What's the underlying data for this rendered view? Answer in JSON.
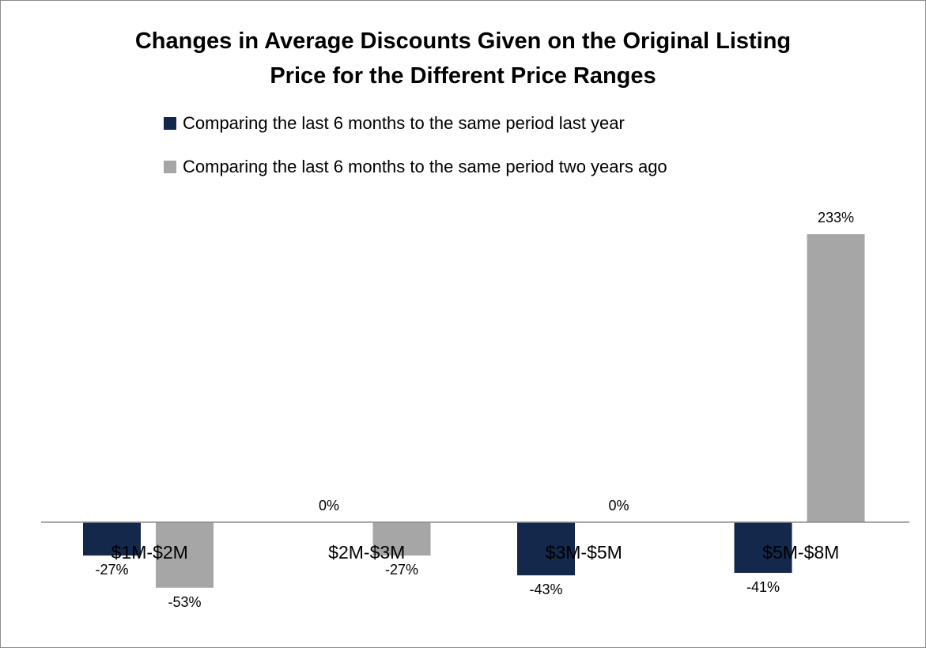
{
  "chart_data": {
    "type": "bar",
    "title_line1": "Changes in Average Discounts Given on the Original Listing",
    "title_line2": "Price for the Different Price Ranges",
    "categories": [
      "$1M-$2M",
      "$2M-$3M",
      "$3M-$5M",
      "$5M-$8M"
    ],
    "series": [
      {
        "name": "Comparing the last 6 months to the same period last year",
        "color": "#13284a",
        "values": [
          -27,
          0,
          -43,
          -41
        ],
        "labels": [
          "-27%",
          "0%",
          "-43%",
          "-41%"
        ]
      },
      {
        "name": "Comparing the last 6 months to the same period two years ago",
        "color": "#a6a6a6",
        "values": [
          -53,
          -27,
          0,
          233
        ],
        "labels": [
          "-53%",
          "-27%",
          "0%",
          "233%"
        ]
      }
    ],
    "ylim": [
      -70,
      250
    ],
    "xlabel": "",
    "ylabel": "",
    "grid": false,
    "legend_position": "top"
  }
}
